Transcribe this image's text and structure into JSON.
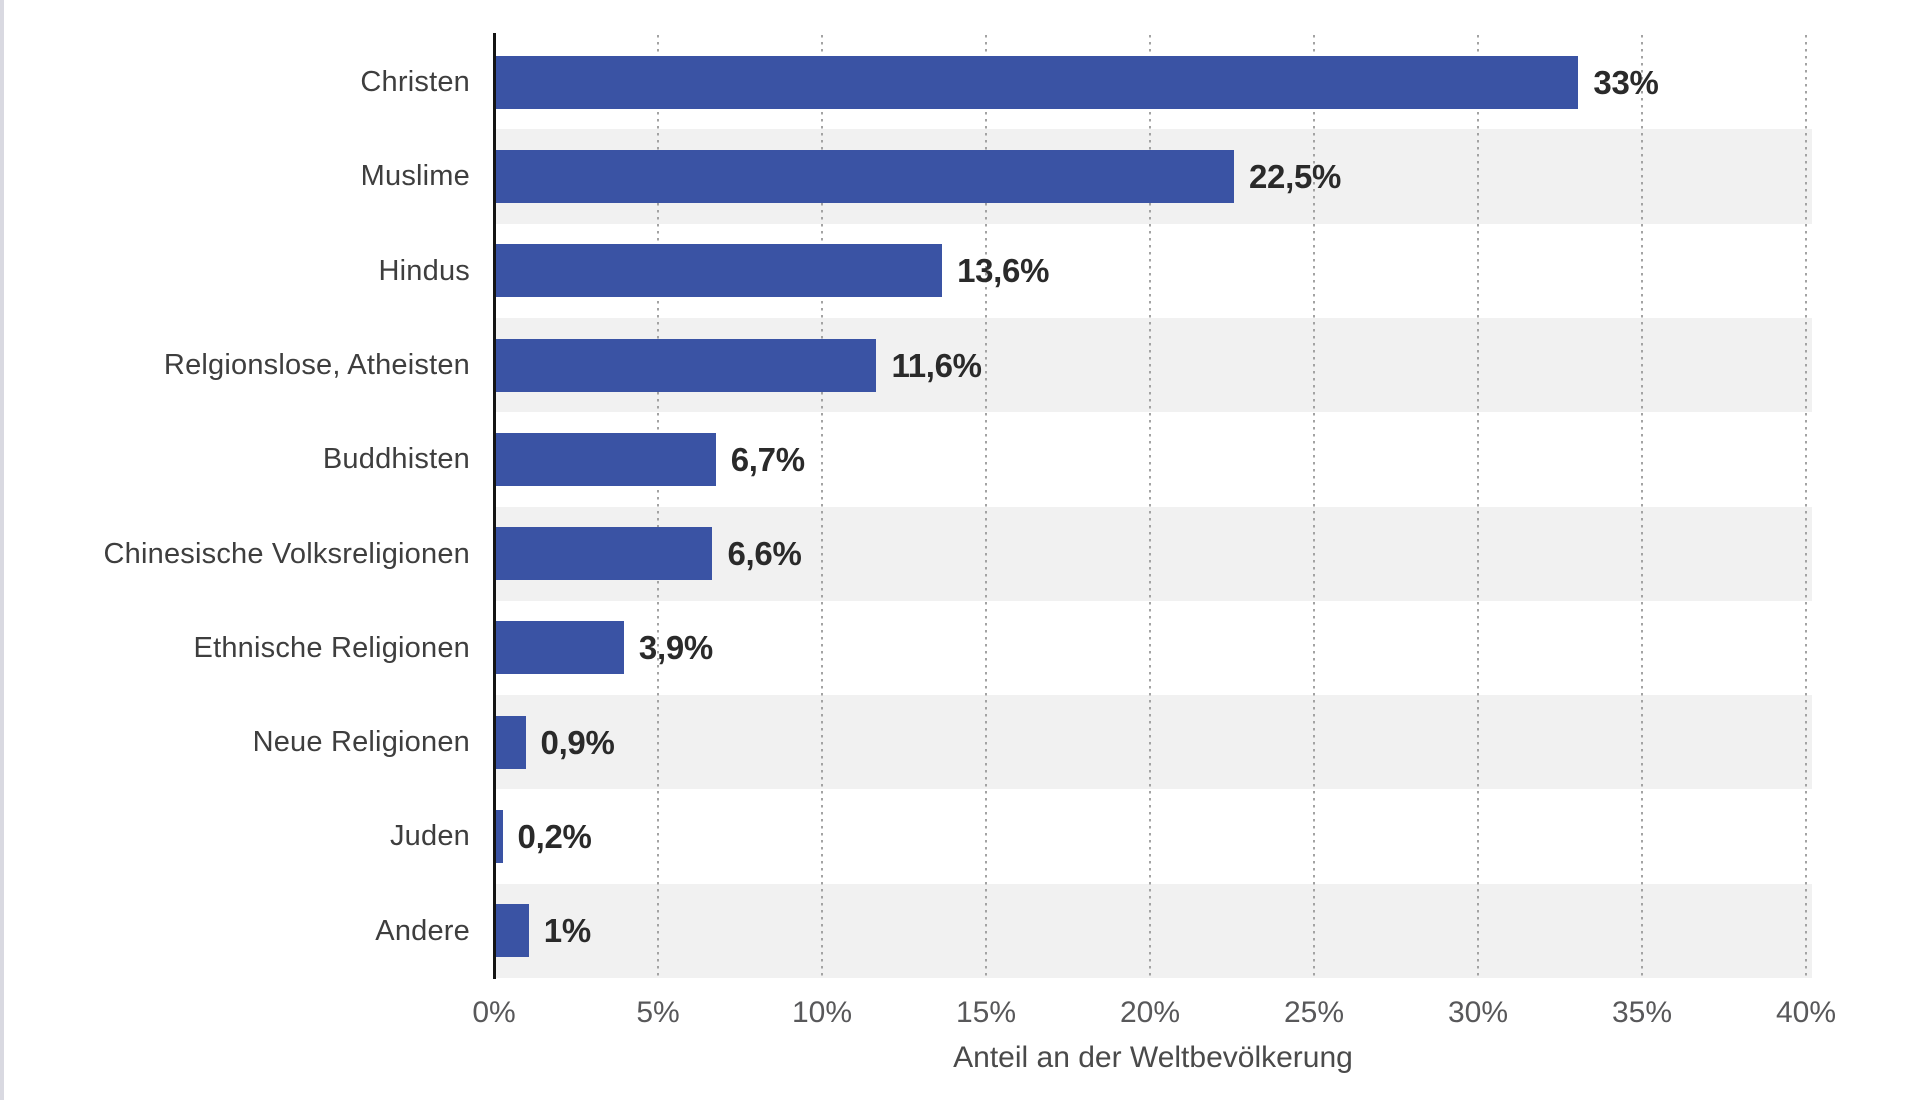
{
  "page": {
    "background": "#ffffff",
    "edge_strip_color": "#d9d9e1"
  },
  "chart_data": {
    "type": "bar",
    "orientation": "horizontal",
    "title": "",
    "xlabel": "Anteil an der Weltbevölkerung",
    "ylabel": "",
    "categories": [
      "Christen",
      "Muslime",
      "Hindus",
      "Relgionslose, Atheisten",
      "Buddhisten",
      "Chinesische Volksreligionen",
      "Ethnische Religionen",
      "Neue Religionen",
      "Juden",
      "Andere"
    ],
    "values": [
      33,
      22.5,
      13.6,
      11.6,
      6.7,
      6.6,
      3.9,
      0.9,
      0.2,
      1
    ],
    "value_labels": [
      "33%",
      "22,5%",
      "13,6%",
      "11,6%",
      "6,7%",
      "6,6%",
      "3,9%",
      "0,9%",
      "0,2%",
      "1%"
    ],
    "x_ticks": [
      "0%",
      "5%",
      "10%",
      "15%",
      "20%",
      "25%",
      "30%",
      "35%",
      "40%"
    ],
    "x_tick_values": [
      0,
      5,
      10,
      15,
      20,
      25,
      30,
      35,
      40
    ],
    "xlim": [
      0,
      40.2
    ],
    "grid": "vertical-dotted",
    "legend": "none",
    "colors": {
      "bar": "#3A53A4",
      "row_stripe": "#F1F1F1",
      "gridline": "#A3A3A3",
      "axis_line": "#141414",
      "category_label": "#3E3E3E",
      "value_label": "#2A2A2A",
      "tick_label": "#58585A",
      "axis_title": "#4A4A4A"
    }
  }
}
